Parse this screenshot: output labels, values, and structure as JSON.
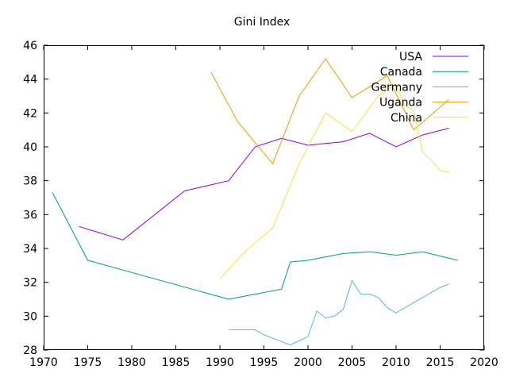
{
  "chart_data": {
    "type": "line",
    "title": "Gini Index",
    "xlabel": "",
    "ylabel": "",
    "xlim": [
      1970,
      2020
    ],
    "ylim": [
      28,
      46
    ],
    "xticks": [
      1970,
      1975,
      1980,
      1985,
      1990,
      1995,
      2000,
      2005,
      2010,
      2015,
      2020
    ],
    "yticks": [
      28,
      30,
      32,
      34,
      36,
      38,
      40,
      42,
      44,
      46
    ],
    "grid": false,
    "legend_position": "top-right",
    "series": [
      {
        "name": "USA",
        "color": "#9400d3",
        "points": [
          [
            1974,
            35.3
          ],
          [
            1979,
            34.5
          ],
          [
            1986,
            37.4
          ],
          [
            1991,
            38.0
          ],
          [
            1994,
            40.0
          ],
          [
            1997,
            40.5
          ],
          [
            2000,
            40.1
          ],
          [
            2004,
            40.3
          ],
          [
            2007,
            40.8
          ],
          [
            2010,
            40.0
          ],
          [
            2013,
            40.7
          ],
          [
            2016,
            41.1
          ]
        ]
      },
      {
        "name": "Canada",
        "color": "#009e73",
        "points": [
          [
            1971,
            37.3
          ],
          [
            1975,
            33.3
          ],
          [
            1991,
            31.0
          ],
          [
            1994,
            31.3
          ],
          [
            1997,
            31.6
          ],
          [
            1998,
            33.2
          ],
          [
            2000,
            33.3
          ],
          [
            2004,
            33.7
          ],
          [
            2007,
            33.8
          ],
          [
            2010,
            33.6
          ],
          [
            2013,
            33.8
          ],
          [
            2017,
            33.3
          ]
        ]
      },
      {
        "name": "Germany",
        "color": "#56b4e9",
        "points": [
          [
            1991,
            29.2
          ],
          [
            1994,
            29.2
          ],
          [
            1995,
            28.9
          ],
          [
            1998,
            28.3
          ],
          [
            2000,
            28.8
          ],
          [
            2001,
            30.3
          ],
          [
            2002,
            29.9
          ],
          [
            2003,
            30.0
          ],
          [
            2004,
            30.4
          ],
          [
            2005,
            32.1
          ],
          [
            2006,
            31.3
          ],
          [
            2007,
            31.3
          ],
          [
            2008,
            31.1
          ],
          [
            2009,
            30.5
          ],
          [
            2010,
            30.2
          ],
          [
            2013,
            31.1
          ],
          [
            2015,
            31.7
          ],
          [
            2016,
            31.9
          ]
        ]
      },
      {
        "name": "Uganda",
        "color": "#e69f00",
        "points": [
          [
            1989,
            44.4
          ],
          [
            1992,
            41.5
          ],
          [
            1996,
            39.0
          ],
          [
            1999,
            43.0
          ],
          [
            2002,
            45.2
          ],
          [
            2005,
            42.9
          ],
          [
            2009,
            44.2
          ],
          [
            2012,
            41.0
          ],
          [
            2016,
            42.8
          ]
        ]
      },
      {
        "name": "China",
        "color": "#f0e442",
        "points": [
          [
            1990,
            32.2
          ],
          [
            1993,
            33.9
          ],
          [
            1996,
            35.2
          ],
          [
            1999,
            39.0
          ],
          [
            2002,
            42.0
          ],
          [
            2005,
            40.9
          ],
          [
            2008,
            43.0
          ],
          [
            2010,
            43.7
          ],
          [
            2011,
            42.4
          ],
          [
            2012,
            42.2
          ],
          [
            2013,
            39.7
          ],
          [
            2014,
            39.2
          ],
          [
            2015,
            38.6
          ],
          [
            2016,
            38.5
          ]
        ]
      }
    ]
  }
}
